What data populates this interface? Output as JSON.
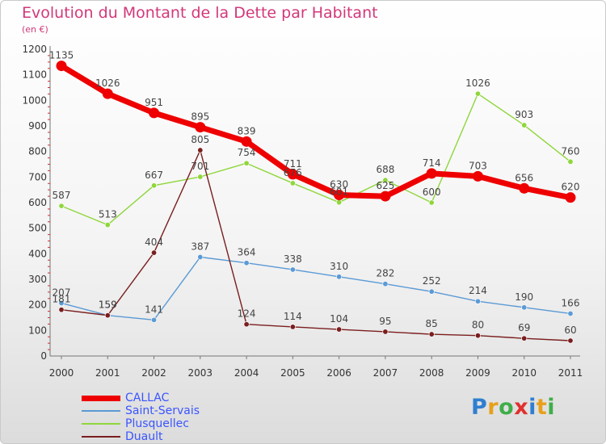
{
  "title": "Evolution du Montant de la Dette par Habitant",
  "subtitle": "(en €)",
  "logo": {
    "letters": [
      {
        "ch": "P",
        "color": "#2f7fd0"
      },
      {
        "ch": "r",
        "color": "#e8a01a"
      },
      {
        "ch": "o",
        "color": "#3fae49"
      },
      {
        "ch": "x",
        "color": "#e0302f"
      },
      {
        "ch": "i",
        "color": "#2f7fd0"
      },
      {
        "ch": "t",
        "color": "#e8a01a"
      },
      {
        "ch": "i",
        "color": "#3fae49"
      }
    ]
  },
  "chart_data": {
    "type": "line",
    "x": [
      "2000",
      "2001",
      "2002",
      "2003",
      "2004",
      "2005",
      "2006",
      "2007",
      "2008",
      "2009",
      "2010",
      "2011"
    ],
    "ylim": [
      0,
      1200
    ],
    "yticks": [
      "0",
      "100",
      "200",
      "300",
      "400",
      "500",
      "600",
      "700",
      "800",
      "900",
      "1000",
      "1100",
      "1200"
    ],
    "grid": false,
    "legend_position": "bottom-left",
    "series": [
      {
        "name": "CALLAC",
        "values": [
          1135,
          1026,
          951,
          895,
          839,
          711,
          630,
          625,
          714,
          703,
          656,
          620
        ],
        "color": "#ee0000",
        "labels": [
          "1135",
          "1026",
          "951",
          "895",
          "839",
          "711",
          "630",
          "625",
          "714",
          "703",
          "656",
          "620"
        ]
      },
      {
        "name": "Saint-Servais",
        "values": [
          207,
          159,
          141,
          387,
          364,
          338,
          310,
          282,
          252,
          214,
          190,
          166
        ],
        "color": "#5b9ad5",
        "labels": [
          "207",
          "159",
          "141",
          "387",
          "364",
          "338",
          "310",
          "282",
          "252",
          "214",
          "190",
          "166"
        ]
      },
      {
        "name": "Plusquellec",
        "values": [
          587,
          513,
          667,
          701,
          754,
          676,
          601,
          688,
          600,
          1026,
          903,
          760
        ],
        "color": "#8fd63b",
        "labels": [
          "587",
          "513",
          "667",
          "701",
          "754",
          "676",
          "601",
          "688",
          "600",
          "1026",
          "903",
          "760"
        ]
      },
      {
        "name": "Duault",
        "values": [
          181,
          159,
          404,
          805,
          124,
          114,
          104,
          95,
          85,
          80,
          69,
          60
        ],
        "color": "#7a1e1e",
        "labels": [
          "181",
          "159",
          "404",
          "805",
          "124",
          "114",
          "104",
          "95",
          "85",
          "80",
          "69",
          "60"
        ]
      }
    ]
  }
}
